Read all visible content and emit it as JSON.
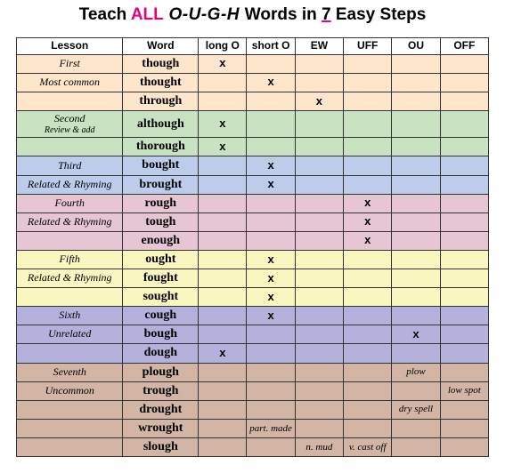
{
  "title": {
    "pre": "Teach ",
    "accent": "ALL",
    "ough": "  O-U-G-H ",
    "mid": " Words in ",
    "seven": "7",
    "post": " Easy Steps"
  },
  "columns": [
    "Lesson",
    "Word",
    "long O",
    "short O",
    "EW",
    "UFF",
    "OU",
    "OFF"
  ],
  "colors": {
    "c1": "#fde6cc",
    "c2": "#c9e2c1",
    "c3": "#bcccea",
    "c4": "#e5c6d2",
    "c5": "#faf6c0",
    "c6": "#b4b2dc",
    "c7": "#d2b5a5"
  },
  "rows": [
    {
      "color": "c1",
      "lesson": "First",
      "word": "though",
      "marks": [
        "x",
        "",
        "",
        "",
        "",
        ""
      ]
    },
    {
      "color": "c1",
      "lesson": "Most common",
      "word": "thought",
      "marks": [
        "",
        "x",
        "",
        "",
        "",
        ""
      ]
    },
    {
      "color": "c1",
      "lesson": "",
      "word": "through",
      "marks": [
        "",
        "",
        "x",
        "",
        "",
        ""
      ]
    },
    {
      "color": "c2",
      "lesson": "Second",
      "sub": "Review & add",
      "word": "although",
      "marks": [
        "x",
        "",
        "",
        "",
        "",
        ""
      ]
    },
    {
      "color": "c2",
      "lesson": "",
      "word": "thorough",
      "marks": [
        "x",
        "",
        "",
        "",
        "",
        ""
      ]
    },
    {
      "color": "c3",
      "lesson": "Third",
      "word": "bought",
      "marks": [
        "",
        "x",
        "",
        "",
        "",
        ""
      ]
    },
    {
      "color": "c3",
      "lesson": "Related & Rhyming",
      "word": "brought",
      "marks": [
        "",
        "x",
        "",
        "",
        "",
        ""
      ]
    },
    {
      "color": "c4",
      "lesson": "Fourth",
      "word": "rough",
      "marks": [
        "",
        "",
        "",
        "x",
        "",
        ""
      ]
    },
    {
      "color": "c4",
      "lesson": "Related & Rhyming",
      "word": "tough",
      "marks": [
        "",
        "",
        "",
        "x",
        "",
        ""
      ]
    },
    {
      "color": "c4",
      "lesson": "",
      "word": "enough",
      "marks": [
        "",
        "",
        "",
        "x",
        "",
        ""
      ]
    },
    {
      "color": "c5",
      "lesson": "Fifth",
      "word": "ought",
      "marks": [
        "",
        "x",
        "",
        "",
        "",
        ""
      ]
    },
    {
      "color": "c5",
      "lesson": "Related & Rhyming",
      "word": "fought",
      "marks": [
        "",
        "x",
        "",
        "",
        "",
        ""
      ]
    },
    {
      "color": "c5",
      "lesson": "",
      "word": "sought",
      "marks": [
        "",
        "x",
        "",
        "",
        "",
        ""
      ]
    },
    {
      "color": "c6",
      "lesson": "Sixth",
      "word": "cough",
      "marks": [
        "",
        "x",
        "",
        "",
        "",
        ""
      ]
    },
    {
      "color": "c6",
      "lesson": "Unrelated",
      "word": "bough",
      "marks": [
        "",
        "",
        "",
        "",
        "x",
        ""
      ]
    },
    {
      "color": "c6",
      "lesson": "",
      "word": "dough",
      "marks": [
        "x",
        "",
        "",
        "",
        "",
        ""
      ]
    },
    {
      "color": "c7",
      "lesson": "Seventh",
      "word": "plough",
      "marks": [
        "",
        "",
        "",
        "",
        "",
        ""
      ],
      "notes": [
        "",
        "",
        "",
        "",
        "plow",
        ""
      ]
    },
    {
      "color": "c7",
      "lesson": "Uncommon",
      "word": "trough",
      "marks": [
        "",
        "",
        "",
        "",
        "",
        ""
      ],
      "notes": [
        "",
        "",
        "",
        "",
        "",
        "low spot"
      ]
    },
    {
      "color": "c7",
      "lesson": "",
      "word": "drought",
      "marks": [
        "",
        "",
        "",
        "",
        "",
        ""
      ],
      "notes": [
        "",
        "",
        "",
        "",
        "dry spell",
        ""
      ]
    },
    {
      "color": "c7",
      "lesson": "",
      "word": "wrought",
      "marks": [
        "",
        "",
        "",
        "",
        "",
        ""
      ],
      "notes": [
        "",
        "part. made",
        "",
        "",
        "",
        ""
      ]
    },
    {
      "color": "c7",
      "lesson": "",
      "word": "slough",
      "marks": [
        "",
        "",
        "",
        "",
        "",
        ""
      ],
      "notes": [
        "",
        "",
        "n. mud",
        "v. cast off",
        "",
        ""
      ]
    }
  ]
}
